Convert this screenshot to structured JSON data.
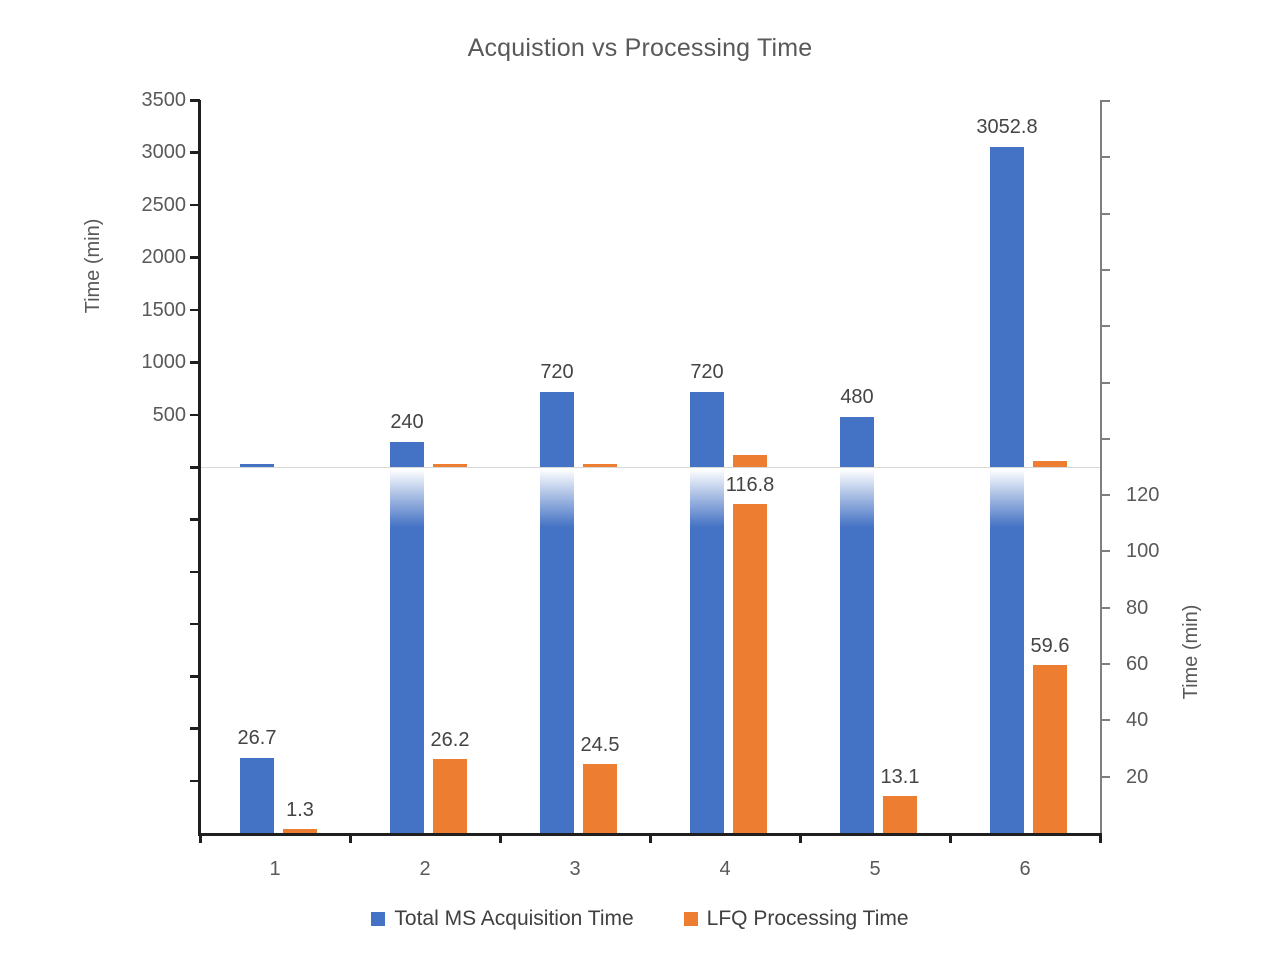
{
  "title": "Acquistion vs Processing Time",
  "chart_data": {
    "type": "bar",
    "title": "Acquistion vs Processing Time",
    "categories": [
      "1",
      "2",
      "3",
      "4",
      "5",
      "6"
    ],
    "series": [
      {
        "name": "Total MS Acquisition Time",
        "color": "#4472C4",
        "values": [
          26.7,
          240,
          720,
          720,
          480,
          3052.8
        ],
        "labels": [
          "26.7",
          "240",
          "720",
          "720",
          "480",
          "3052.8"
        ]
      },
      {
        "name": "LFQ Processing Time",
        "color": "#ED7D31",
        "values": [
          1.3,
          26.2,
          24.5,
          116.8,
          13.1,
          59.6
        ],
        "labels": [
          "1.3",
          "26.2",
          "24.5",
          "116.8",
          "13.1",
          "59.6"
        ]
      }
    ],
    "left_axis": {
      "label": "Time (min)",
      "ticks": [
        3500,
        3000,
        2500,
        2000,
        1500,
        1000,
        500
      ],
      "range": [
        0,
        3500
      ]
    },
    "right_axis": {
      "label": "Time (min)",
      "ticks": [
        120,
        100,
        80,
        60,
        40,
        20
      ],
      "range": [
        0,
        130
      ]
    },
    "layout_hint": "split panel: top half scaled to left axis, bottom half scaled to right axis, tall bars fade to white just below the divider line",
    "divider_color": "#D9D9D9",
    "axis_color_dark": "#1f1f1f",
    "axis_color_gray": "#7f7f7f",
    "data_labels": true,
    "legend_position": "bottom",
    "grid": "off"
  },
  "legend": {
    "items": [
      {
        "label": "Total MS Acquisition Time",
        "color": "#4472C4"
      },
      {
        "label": "LFQ Processing Time",
        "color": "#ED7D31"
      }
    ]
  }
}
